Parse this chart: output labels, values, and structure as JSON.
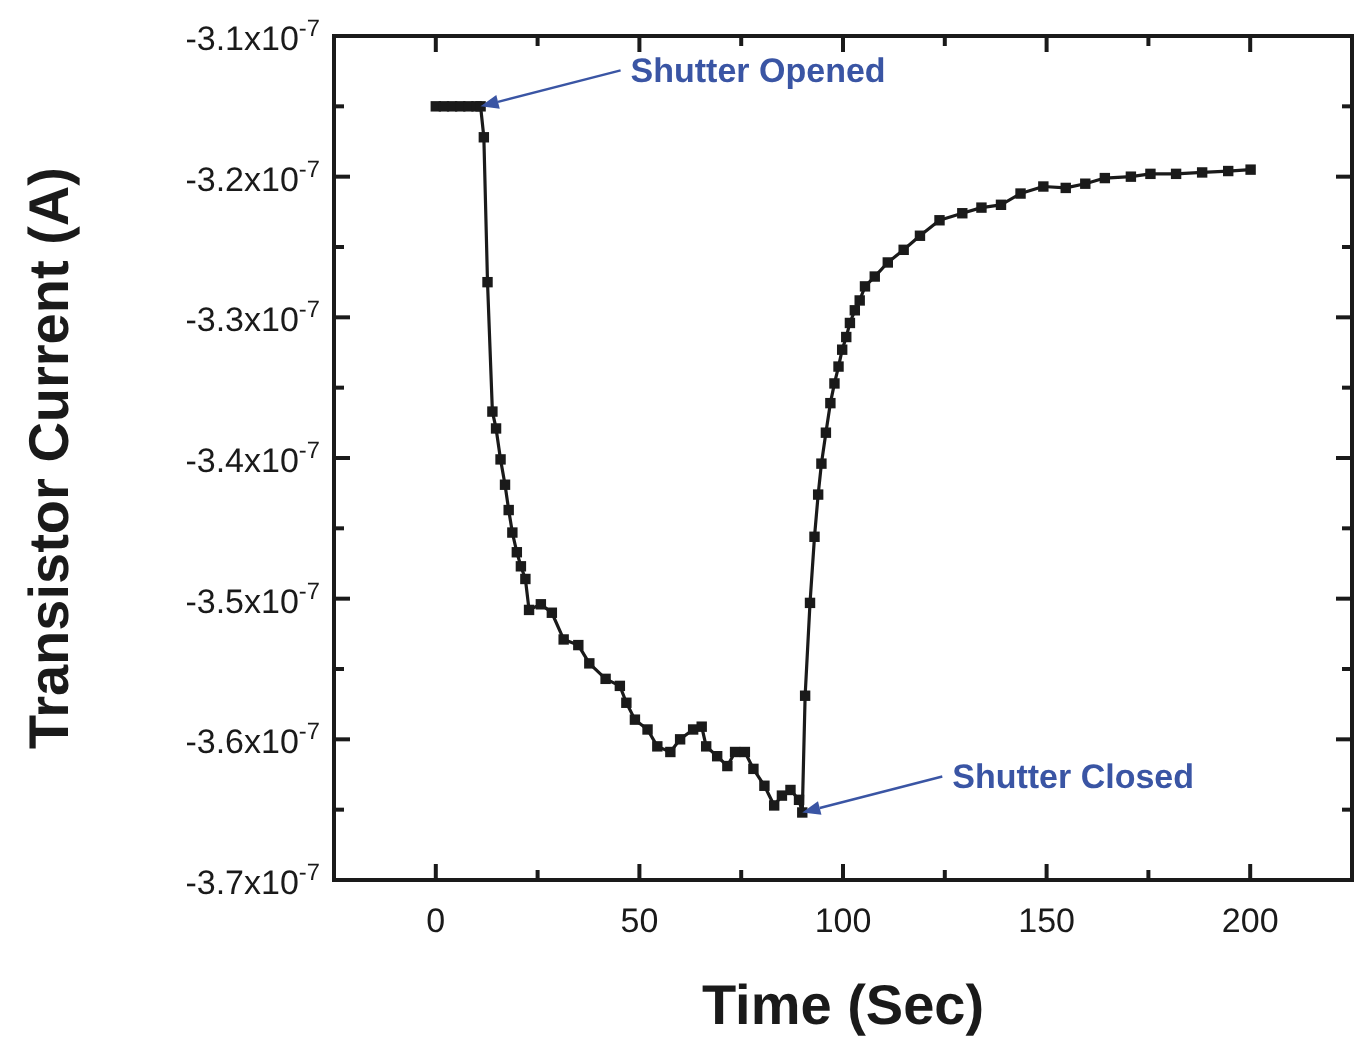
{
  "chart_data": {
    "type": "line",
    "xlabel": "Time (Sec)",
    "ylabel": "Transistor Current (A)",
    "marker": "square",
    "line_style": "solid",
    "grid": false,
    "xlim": [
      -25,
      225
    ],
    "xticks": [
      {
        "value": -25,
        "label": null
      },
      0,
      {
        "value": 25,
        "label": null
      },
      50,
      {
        "value": 75,
        "label": null
      },
      100,
      {
        "value": 125,
        "label": null
      },
      150,
      {
        "value": 175,
        "label": null
      },
      200,
      {
        "value": 225,
        "label": null
      }
    ],
    "ylim": [
      -3.7e-07,
      -3.1e-07
    ],
    "yticks": [
      {
        "value": -3.7e-07,
        "label": "-3.7x10$^{-7}$"
      },
      {
        "value": -3.65e-07,
        "label": null
      },
      {
        "value": -3.6e-07,
        "label": "-3.6x10$^{-7}$"
      },
      {
        "value": -3.55e-07,
        "label": null
      },
      {
        "value": -3.5e-07,
        "label": "-3.5x10$^{-7}$"
      },
      {
        "value": -3.45e-07,
        "label": null
      },
      {
        "value": -3.4e-07,
        "label": "-3.4x10$^{-7}$"
      },
      {
        "value": -3.35e-07,
        "label": null
      },
      {
        "value": -3.3e-07,
        "label": "-3.3x10$^{-7}$"
      },
      {
        "value": -3.25e-07,
        "label": null
      },
      {
        "value": -3.2e-07,
        "label": "-3.2x10$^{-7}$"
      },
      {
        "value": -3.15e-07,
        "label": null
      },
      {
        "value": -3.1e-07,
        "label": "-3.1x10$^{-7}$"
      }
    ],
    "annotations": [
      {
        "text": "Shutter Opened",
        "x": 11,
        "y": -3.15e-07
      },
      {
        "text": "Shutter Closed",
        "x": 90,
        "y": -3.652e-07
      }
    ],
    "series": [
      {
        "color": "#1a1a1a",
        "x": [
          0,
          2,
          4,
          6,
          8,
          10,
          11,
          11.8,
          12.7,
          13.9,
          14.8,
          15.9,
          17,
          17.9,
          18.8,
          19.9,
          20.9,
          22,
          22.9,
          25.8,
          28.5,
          31.4,
          35,
          37.7,
          41.7,
          45.2,
          46.8,
          48.9,
          52,
          54.4,
          57.6,
          60,
          63.2,
          65.3,
          66.4,
          69.1,
          71.6,
          73.5,
          75.9,
          78,
          80.7,
          83.1,
          85,
          87.1,
          89.2,
          90,
          90.7,
          91.9,
          93,
          93.9,
          94.7,
          95.8,
          96.9,
          97.9,
          98.9,
          99.8,
          100.8,
          101.7,
          102.9,
          104.1,
          105.4,
          107.8,
          111,
          114.9,
          118.9,
          123.7,
          129.3,
          134,
          138.8,
          143.6,
          149.2,
          154.7,
          159.5,
          164.3,
          170.7,
          175.5,
          181.8,
          188.2,
          194.6,
          200.1
        ],
        "values": [
          -3.15e-07,
          -3.15e-07,
          -3.15e-07,
          -3.15e-07,
          -3.15e-07,
          -3.15e-07,
          -3.15e-07,
          -3.172e-07,
          -3.275e-07,
          -3.367e-07,
          -3.379e-07,
          -3.401e-07,
          -3.419e-07,
          -3.437e-07,
          -3.453e-07,
          -3.467e-07,
          -3.477e-07,
          -3.486e-07,
          -3.508e-07,
          -3.504e-07,
          -3.51e-07,
          -3.529e-07,
          -3.533e-07,
          -3.546e-07,
          -3.557e-07,
          -3.562e-07,
          -3.574e-07,
          -3.586e-07,
          -3.593e-07,
          -3.605e-07,
          -3.609e-07,
          -3.6e-07,
          -3.593e-07,
          -3.591e-07,
          -3.605e-07,
          -3.612e-07,
          -3.619e-07,
          -3.609e-07,
          -3.609e-07,
          -3.621e-07,
          -3.633e-07,
          -3.647e-07,
          -3.64e-07,
          -3.636e-07,
          -3.643e-07,
          -3.652e-07,
          -3.569e-07,
          -3.503e-07,
          -3.456e-07,
          -3.426e-07,
          -3.404e-07,
          -3.382e-07,
          -3.361e-07,
          -3.347e-07,
          -3.335e-07,
          -3.323e-07,
          -3.314e-07,
          -3.304e-07,
          -3.295e-07,
          -3.288e-07,
          -3.278e-07,
          -3.271e-07,
          -3.261e-07,
          -3.252e-07,
          -3.242e-07,
          -3.231e-07,
          -3.226e-07,
          -3.222e-07,
          -3.22e-07,
          -3.212e-07,
          -3.207e-07,
          -3.208e-07,
          -3.205e-07,
          -3.201e-07,
          -3.2e-07,
          -3.198e-07,
          -3.198e-07,
          -3.197e-07,
          -3.196e-07,
          -3.195e-07
        ]
      }
    ]
  }
}
